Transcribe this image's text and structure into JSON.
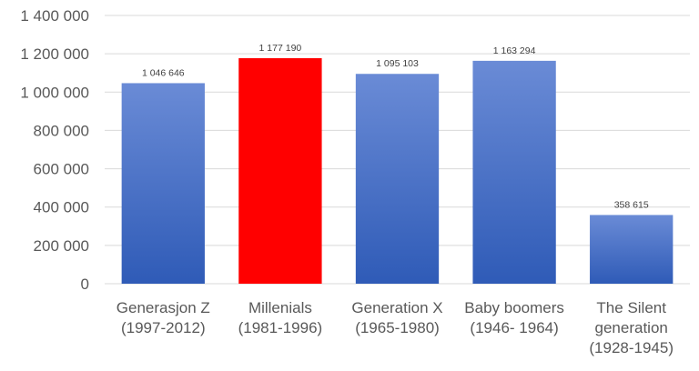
{
  "chart_data": {
    "type": "bar",
    "categories": [
      [
        "Generasjon Z",
        "(1997-2012)"
      ],
      [
        "Millenials",
        "(1981-1996)"
      ],
      [
        "Generation X",
        "(1965-1980)"
      ],
      [
        "Baby boomers",
        "(1946- 1964)"
      ],
      [
        "The Silent",
        "generation",
        "(1928-1945)"
      ]
    ],
    "values": [
      1046646,
      1177190,
      1095103,
      1163294,
      358615
    ],
    "value_labels": [
      "1 046 646",
      "1 177 190",
      "1 095 103",
      "1 163 294",
      "358 615"
    ],
    "yticks": [
      0,
      200000,
      400000,
      600000,
      800000,
      1000000,
      1200000,
      1400000
    ],
    "ytick_labels": [
      "0",
      "200 000",
      "400 000",
      "600 000",
      "800 000",
      "1 000 000",
      "1 200 000",
      "1 400 000"
    ],
    "ylim": [
      0,
      1400000
    ],
    "grid": true,
    "title": "",
    "xlabel": "",
    "ylabel": "",
    "colors": {
      "default_top": "#6a8bd6",
      "default_bottom": "#2f5bb7",
      "highlight": "#ff0000"
    },
    "highlight_index": 1
  }
}
